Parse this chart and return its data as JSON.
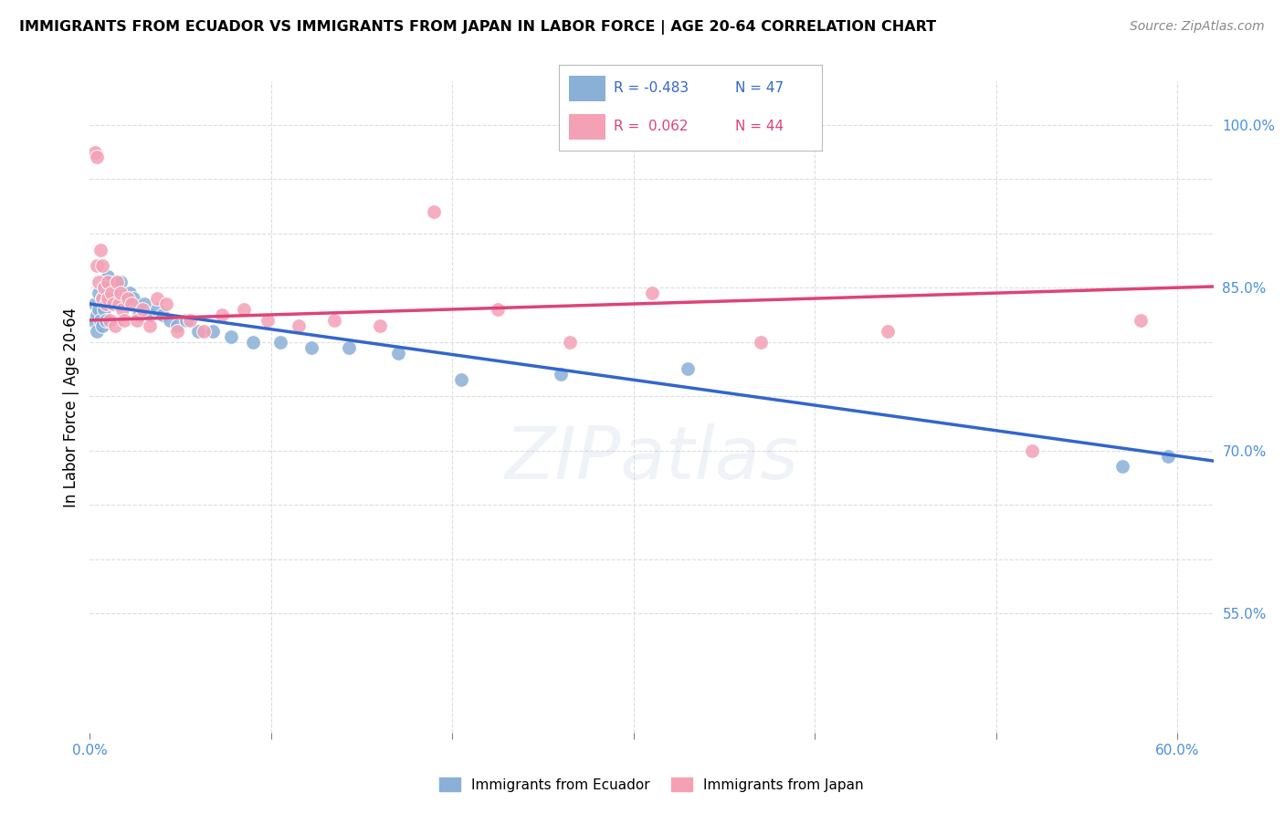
{
  "title": "IMMIGRANTS FROM ECUADOR VS IMMIGRANTS FROM JAPAN IN LABOR FORCE | AGE 20-64 CORRELATION CHART",
  "source": "Source: ZipAtlas.com",
  "ylabel": "In Labor Force | Age 20-64",
  "xlim": [
    0.0,
    0.62
  ],
  "ylim": [
    0.44,
    1.04
  ],
  "background_color": "#ffffff",
  "grid_color": "#dddddd",
  "ecuador_color": "#8ab0d8",
  "japan_color": "#f4a0b5",
  "ecuador_line_color": "#3366cc",
  "japan_line_color": "#dd4477",
  "legend_ecuador_R": "-0.483",
  "legend_ecuador_N": "47",
  "legend_japan_R": "0.062",
  "legend_japan_N": "44",
  "right_ticks": [
    0.55,
    0.6,
    0.65,
    0.7,
    0.75,
    0.8,
    0.85,
    0.9,
    0.95,
    1.0
  ],
  "right_tick_labels": [
    "55.0%",
    "",
    "",
    "70.0%",
    "",
    "",
    "85.0%",
    "",
    "",
    "100.0%"
  ],
  "ecuador_x": [
    0.002,
    0.003,
    0.004,
    0.004,
    0.005,
    0.005,
    0.006,
    0.007,
    0.007,
    0.008,
    0.008,
    0.009,
    0.009,
    0.01,
    0.01,
    0.011,
    0.012,
    0.013,
    0.014,
    0.015,
    0.016,
    0.017,
    0.018,
    0.02,
    0.022,
    0.024,
    0.027,
    0.03,
    0.033,
    0.037,
    0.04,
    0.044,
    0.048,
    0.053,
    0.06,
    0.068,
    0.078,
    0.09,
    0.105,
    0.122,
    0.143,
    0.17,
    0.205,
    0.26,
    0.33,
    0.57,
    0.595
  ],
  "ecuador_y": [
    0.82,
    0.835,
    0.81,
    0.825,
    0.845,
    0.83,
    0.82,
    0.84,
    0.815,
    0.83,
    0.84,
    0.82,
    0.855,
    0.845,
    0.86,
    0.85,
    0.84,
    0.835,
    0.845,
    0.855,
    0.85,
    0.855,
    0.84,
    0.84,
    0.845,
    0.84,
    0.825,
    0.835,
    0.825,
    0.83,
    0.825,
    0.82,
    0.815,
    0.82,
    0.81,
    0.81,
    0.805,
    0.8,
    0.8,
    0.795,
    0.795,
    0.79,
    0.765,
    0.77,
    0.775,
    0.685,
    0.695
  ],
  "japan_x": [
    0.003,
    0.004,
    0.004,
    0.005,
    0.006,
    0.007,
    0.007,
    0.008,
    0.009,
    0.01,
    0.01,
    0.011,
    0.012,
    0.013,
    0.014,
    0.015,
    0.016,
    0.017,
    0.018,
    0.019,
    0.021,
    0.023,
    0.026,
    0.029,
    0.033,
    0.037,
    0.042,
    0.048,
    0.055,
    0.063,
    0.073,
    0.085,
    0.098,
    0.115,
    0.135,
    0.16,
    0.19,
    0.225,
    0.265,
    0.31,
    0.37,
    0.44,
    0.52,
    0.58
  ],
  "japan_y": [
    0.975,
    0.97,
    0.87,
    0.855,
    0.885,
    0.84,
    0.87,
    0.85,
    0.835,
    0.84,
    0.855,
    0.82,
    0.845,
    0.835,
    0.815,
    0.855,
    0.835,
    0.845,
    0.83,
    0.82,
    0.84,
    0.835,
    0.82,
    0.83,
    0.815,
    0.84,
    0.835,
    0.81,
    0.82,
    0.81,
    0.825,
    0.83,
    0.82,
    0.815,
    0.82,
    0.815,
    0.92,
    0.83,
    0.8,
    0.845,
    0.8,
    0.81,
    0.7,
    0.82
  ]
}
